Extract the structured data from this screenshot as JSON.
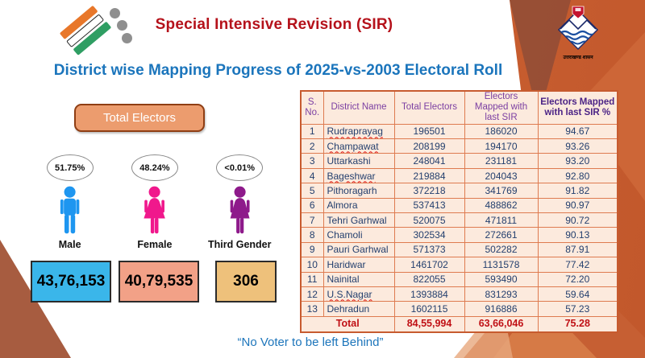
{
  "header": {
    "title": "Special Intensive Revision (SIR)",
    "subtitle": "District wise Mapping Progress of 2025-vs-2003 Electoral Roll",
    "uttarakhand_emblem_text": "उत्तराखण्ड शासन"
  },
  "colors": {
    "title_red": "#b5121b",
    "subtitle_blue": "#1b75bc",
    "band_orange": "#c2582c",
    "table_border_orange": "#de7b50",
    "table_header_purple": "#7b3fa2",
    "table_value_navy": "#233f6e",
    "total_row_red": "#c01015",
    "male_blue": "#1e96f0",
    "female_pink": "#f0188c",
    "third_gender_purple": "#8e1a8b",
    "male_box": "#3ab6ea",
    "female_box": "#f2a187",
    "third_box": "#eec17b"
  },
  "electors_panel": {
    "heading": "Total Electors",
    "groups": [
      {
        "label": "Male",
        "percent": "51.75%",
        "count": "43,76,153",
        "fill": "#1e96f0",
        "box": "#3ab6ea"
      },
      {
        "label": "Female",
        "percent": "48.24%",
        "count": "40,79,535",
        "fill": "#f0188c",
        "box": "#f2a187"
      },
      {
        "label": "Third Gender",
        "percent": "<0.01%",
        "count": "306",
        "fill": "#8e1a8b",
        "box": "#eec17b"
      }
    ]
  },
  "table": {
    "columns": [
      "S. No.",
      "District Name",
      "Total Electors",
      "Electors Mapped with last SIR",
      "Electors Mapped with last SIR %"
    ],
    "rows": [
      {
        "sno": "1",
        "district": "Rudraprayag",
        "total": "196501",
        "mapped": "186020",
        "pct": "94.67",
        "misspell": true
      },
      {
        "sno": "2",
        "district": "Champawat",
        "total": "208199",
        "mapped": "194170",
        "pct": "93.26",
        "misspell": true
      },
      {
        "sno": "3",
        "district": "Uttarkashi",
        "total": "248041",
        "mapped": "231181",
        "pct": "93.20",
        "misspell": false
      },
      {
        "sno": "4",
        "district": "Bageshwar",
        "total": "219884",
        "mapped": "204043",
        "pct": "92.80",
        "misspell": true
      },
      {
        "sno": "5",
        "district": "Pithoragarh",
        "total": "372218",
        "mapped": "341769",
        "pct": "91.82",
        "misspell": false
      },
      {
        "sno": "6",
        "district": "Almora",
        "total": "537413",
        "mapped": "488862",
        "pct": "90.97",
        "misspell": false
      },
      {
        "sno": "7",
        "district": "Tehri Garhwal",
        "total": "520075",
        "mapped": "471811",
        "pct": "90.72",
        "misspell": false
      },
      {
        "sno": "8",
        "district": "Chamoli",
        "total": "302534",
        "mapped": "272661",
        "pct": "90.13",
        "misspell": false
      },
      {
        "sno": "9",
        "district": "Pauri Garhwal",
        "total": "571373",
        "mapped": "502282",
        "pct": "87.91",
        "misspell": false
      },
      {
        "sno": "10",
        "district": "Haridwar",
        "total": "1461702",
        "mapped": "1131578",
        "pct": "77.42",
        "misspell": false
      },
      {
        "sno": "11",
        "district": "Nainital",
        "total": "822055",
        "mapped": "593490",
        "pct": "72.20",
        "misspell": false
      },
      {
        "sno": "12",
        "district": "U.S.Nagar",
        "total": "1393884",
        "mapped": "831293",
        "pct": "59.64",
        "misspell": true
      },
      {
        "sno": "13",
        "district": "Dehradun",
        "total": "1602115",
        "mapped": "916886",
        "pct": "57.23",
        "misspell": false
      }
    ],
    "total_row": {
      "label": "Total",
      "total": "84,55,994",
      "mapped": "63,66,046",
      "pct": "75.28"
    }
  },
  "footer": {
    "quote": "“No Voter to be left Behind”"
  }
}
